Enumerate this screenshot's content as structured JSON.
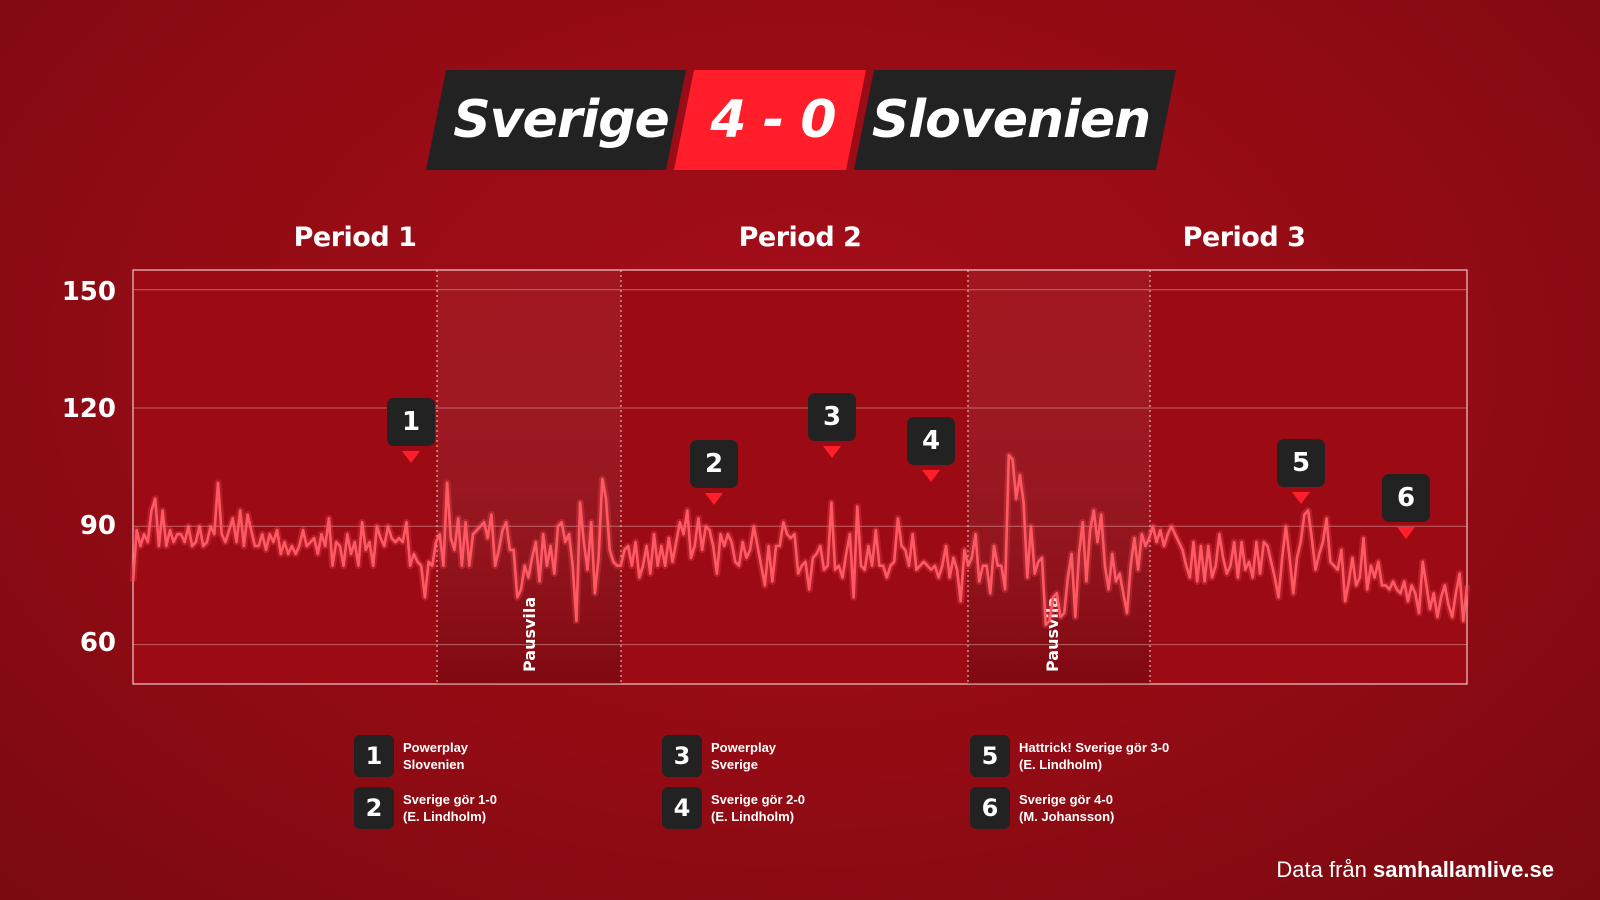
{
  "header": {
    "home_team": "Sverige",
    "score": "4 - 0",
    "away_team": "Slovenien",
    "colors": {
      "dark": "#222222",
      "score_bg": "#ff1e2a"
    }
  },
  "chart_data": {
    "type": "line",
    "ylim": [
      50,
      155
    ],
    "yticks": [
      "150",
      "120",
      "90",
      "60"
    ],
    "periods": [
      "Period 1",
      "Period 2",
      "Period 3"
    ],
    "pause_label": "Pausvila",
    "line_color": "#ff5a64",
    "series": [
      {
        "values": [
          76,
          89,
          85,
          88,
          86,
          94,
          97,
          85,
          94,
          85,
          89,
          86,
          88,
          88,
          86,
          90,
          85,
          86,
          90,
          85,
          86,
          90,
          88,
          101,
          88,
          86,
          89,
          92,
          86,
          94,
          85,
          93,
          89,
          85,
          85,
          88,
          84,
          88,
          86,
          89,
          83,
          86,
          83,
          85,
          83,
          85,
          89,
          85,
          86,
          87,
          83,
          88,
          85,
          92,
          80,
          86,
          85,
          80,
          88,
          83,
          86,
          80,
          91,
          84,
          86,
          80,
          90,
          87,
          85,
          90,
          87,
          86,
          87,
          86,
          91,
          80,
          83,
          81,
          80,
          72,
          81,
          80,
          86,
          88,
          80,
          101,
          87,
          84,
          92,
          80,
          91,
          80,
          88,
          89,
          90,
          91,
          87,
          93,
          80,
          84,
          89,
          91,
          84,
          84,
          72,
          74,
          80,
          77,
          82,
          86,
          76,
          88,
          80,
          85,
          78,
          90,
          91,
          86,
          88,
          80,
          66,
          96,
          86,
          79,
          91,
          73,
          82,
          102,
          97,
          84,
          81,
          80,
          80,
          84,
          85,
          80,
          86,
          77,
          80,
          85,
          78,
          88,
          80,
          85,
          80,
          87,
          81,
          86,
          91,
          88,
          94,
          82,
          85,
          92,
          84,
          90,
          89,
          85,
          78,
          88,
          85,
          88,
          86,
          81,
          80,
          86,
          82,
          84,
          90,
          85,
          80,
          75,
          85,
          76,
          85,
          85,
          91,
          88,
          87,
          88,
          78,
          80,
          81,
          74,
          82,
          83,
          85,
          79,
          80,
          96,
          79,
          80,
          77,
          83,
          88,
          72,
          95,
          80,
          79,
          85,
          80,
          89,
          80,
          80,
          77,
          80,
          81,
          92,
          85,
          84,
          80,
          88,
          79,
          80,
          81,
          80,
          79,
          80,
          77,
          80,
          85,
          77,
          82,
          79,
          71,
          84,
          80,
          82,
          88,
          76,
          80,
          80,
          73,
          85,
          80,
          80,
          74,
          108,
          107,
          97,
          103,
          96,
          77,
          90,
          78,
          81,
          82,
          65,
          66,
          72,
          73,
          67,
          68,
          77,
          83,
          67,
          83,
          91,
          76,
          89,
          94,
          86,
          93,
          80,
          74,
          83,
          76,
          78,
          73,
          68,
          80,
          87,
          79,
          88,
          85,
          87,
          90,
          86,
          89,
          85,
          88,
          90,
          88,
          86,
          84,
          80,
          77,
          86,
          76,
          85,
          76,
          85,
          77,
          80,
          88,
          82,
          78,
          80,
          86,
          77,
          86,
          79,
          81,
          77,
          86,
          78,
          86,
          85,
          81,
          77,
          72,
          82,
          90,
          82,
          73,
          82,
          86,
          93,
          94,
          87,
          79,
          83,
          86,
          92,
          81,
          80,
          79,
          84,
          71,
          76,
          82,
          75,
          77,
          87,
          74,
          80,
          77,
          81,
          75,
          75,
          74,
          76,
          74,
          73,
          76,
          71,
          75,
          73,
          68,
          81,
          75,
          69,
          73,
          67,
          72,
          75,
          70,
          67,
          73,
          78,
          66,
          75
        ]
      }
    ],
    "events": [
      {
        "id": "1",
        "text": "Powerplay\nSlovenien"
      },
      {
        "id": "2",
        "text": "Sverige gör 1-0\n(E. Lindholm)"
      },
      {
        "id": "3",
        "text": "Powerplay\nSverige"
      },
      {
        "id": "4",
        "text": "Sverige gör 2-0\n(E. Lindholm)"
      },
      {
        "id": "5",
        "text": "Hattrick! Sverige gör 3-0\n(E. Lindholm)"
      },
      {
        "id": "6",
        "text": "Sverige gör 4-0\n(M. Johansson)"
      }
    ]
  },
  "legend": {
    "items": [
      {
        "num": "1",
        "line1": "Powerplay",
        "line2": "Slovenien"
      },
      {
        "num": "2",
        "line1": "Sverige gör 1-0",
        "line2": "(E. Lindholm)"
      },
      {
        "num": "3",
        "line1": "Powerplay",
        "line2": "Sverige"
      },
      {
        "num": "4",
        "line1": "Sverige gör 2-0",
        "line2": "(E. Lindholm)"
      },
      {
        "num": "5",
        "line1": "Hattrick! Sverige gör 3-0",
        "line2": "(E. Lindholm)"
      },
      {
        "num": "6",
        "line1": "Sverige gör 4-0",
        "line2": "(M. Johansson)"
      }
    ]
  },
  "source": {
    "prefix": "Data från ",
    "site": "samhallamlive.se"
  }
}
